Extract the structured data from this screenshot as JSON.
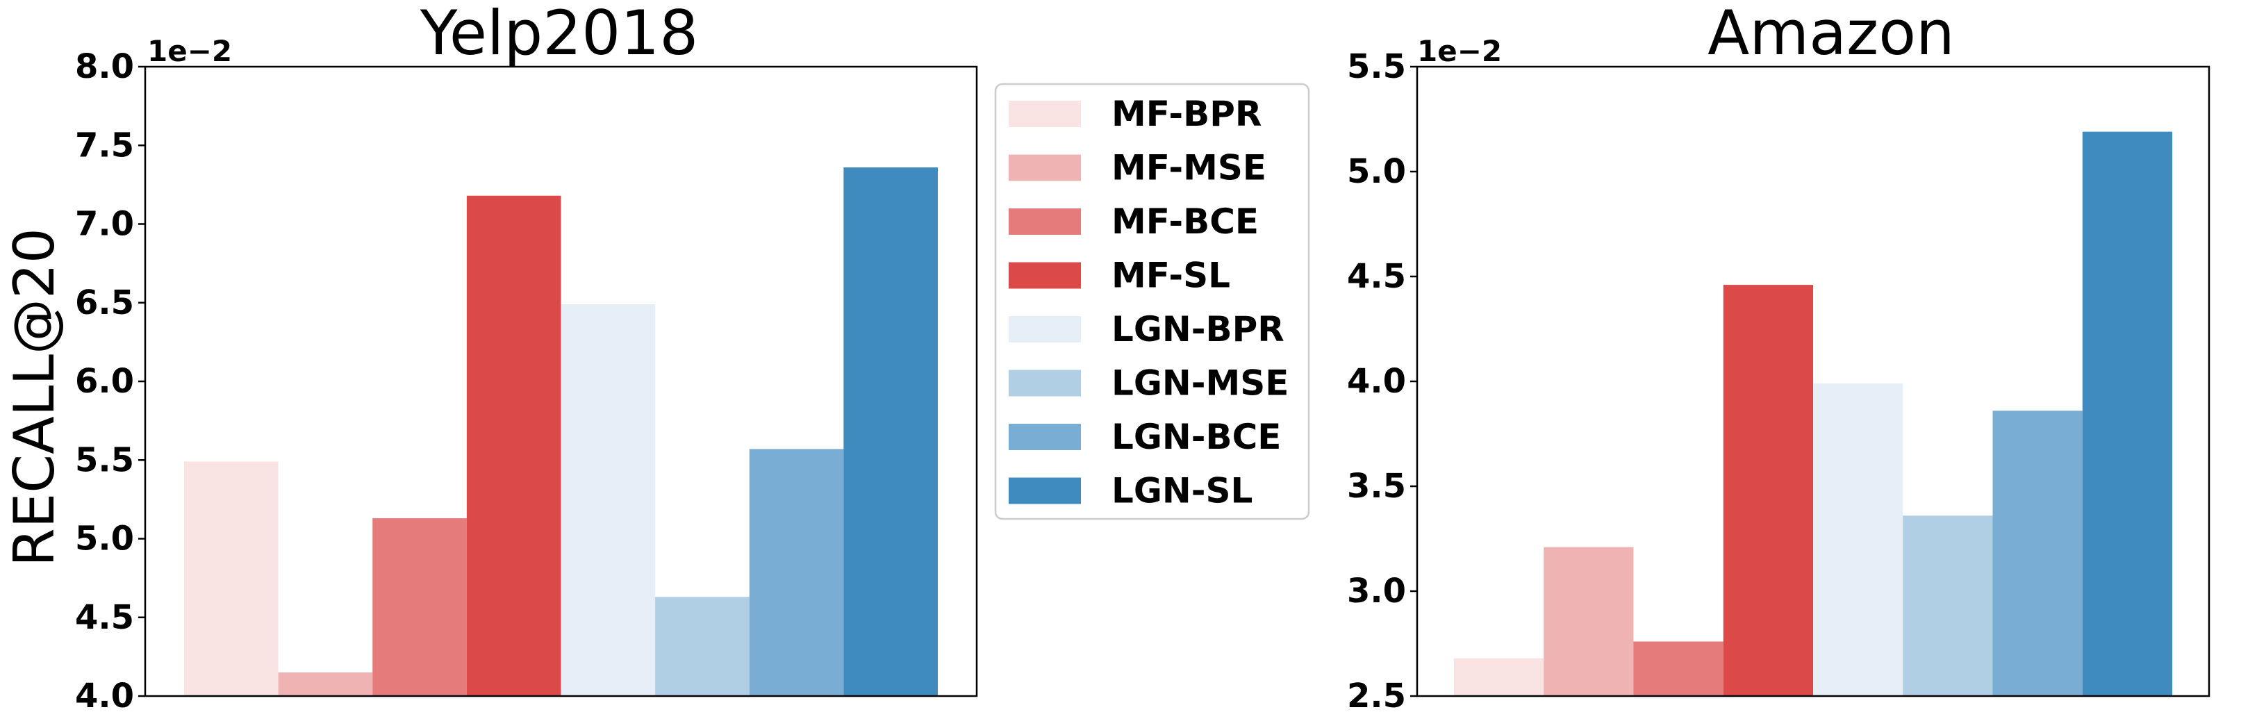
{
  "chart_data": [
    {
      "type": "bar",
      "title": "Yelp2018",
      "ylabel": "RECALL@20",
      "exponent_label": "1e−2",
      "ylim": [
        4.0,
        8.0
      ],
      "yticks": [
        "4.0",
        "4.5",
        "5.0",
        "5.5",
        "6.0",
        "6.5",
        "7.0",
        "7.5",
        "8.0"
      ],
      "grid": false,
      "series": [
        {
          "name": "MF-BPR",
          "values": [
            5.49
          ]
        },
        {
          "name": "MF-MSE",
          "values": [
            4.15
          ]
        },
        {
          "name": "MF-BCE",
          "values": [
            5.13
          ]
        },
        {
          "name": "MF-SL",
          "values": [
            7.18
          ]
        },
        {
          "name": "LGN-BPR",
          "values": [
            6.49
          ]
        },
        {
          "name": "LGN-MSE",
          "values": [
            4.63
          ]
        },
        {
          "name": "LGN-BCE",
          "values": [
            5.57
          ]
        },
        {
          "name": "LGN-SL",
          "values": [
            7.36
          ]
        }
      ]
    },
    {
      "type": "bar",
      "title": "Amazon",
      "ylabel": "",
      "exponent_label": "1e−2",
      "ylim": [
        2.5,
        5.5
      ],
      "yticks": [
        "2.5",
        "3.0",
        "3.5",
        "4.0",
        "4.5",
        "5.0",
        "5.5"
      ],
      "grid": false,
      "series": [
        {
          "name": "MF-BPR",
          "values": [
            2.68
          ]
        },
        {
          "name": "MF-MSE",
          "values": [
            3.21
          ]
        },
        {
          "name": "MF-BCE",
          "values": [
            2.76
          ]
        },
        {
          "name": "MF-SL",
          "values": [
            4.46
          ]
        },
        {
          "name": "LGN-BPR",
          "values": [
            3.99
          ]
        },
        {
          "name": "LGN-MSE",
          "values": [
            3.36
          ]
        },
        {
          "name": "LGN-BCE",
          "values": [
            3.86
          ]
        },
        {
          "name": "LGN-SL",
          "values": [
            5.19
          ]
        }
      ]
    }
  ],
  "legend": {
    "placement": "between-charts",
    "entries": [
      "MF-BPR",
      "MF-MSE",
      "MF-BCE",
      "MF-SL",
      "LGN-BPR",
      "LGN-MSE",
      "LGN-BCE",
      "LGN-SL"
    ]
  },
  "colors": {
    "MF-BPR": "#f9e3e3",
    "MF-MSE": "#efb3b3",
    "MF-BCE": "#e57b7b",
    "MF-SL": "#dc4949",
    "LGN-BPR": "#e6eff8",
    "LGN-MSE": "#b0cfe5",
    "LGN-BCE": "#7aadd3",
    "LGN-SL": "#3f8bbf"
  }
}
